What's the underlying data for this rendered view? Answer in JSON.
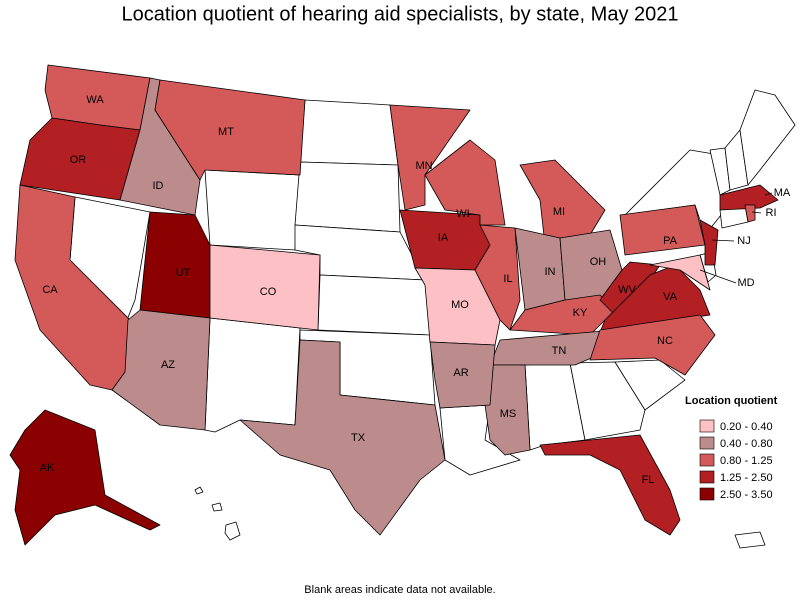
{
  "chart_data": {
    "type": "choropleth",
    "title": "Location quotient of hearing aid specialists, by state, May 2021",
    "legend": {
      "title": "Location quotient",
      "classes": [
        {
          "label": "0.20 - 0.40",
          "color": "#fcc0c5"
        },
        {
          "label": "0.40 - 0.80",
          "color": "#bc8c8c"
        },
        {
          "label": "0.80 - 1.25",
          "color": "#d45a5a"
        },
        {
          "label": "1.25 - 2.50",
          "color": "#b22024"
        },
        {
          "label": "2.50 - 3.50",
          "color": "#8b0000"
        }
      ]
    },
    "states": [
      {
        "label": "WA",
        "class": 2
      },
      {
        "label": "OR",
        "class": 3
      },
      {
        "label": "CA",
        "class": 2
      },
      {
        "label": "ID",
        "class": 1
      },
      {
        "label": "MT",
        "class": 2
      },
      {
        "label": "UT",
        "class": 4
      },
      {
        "label": "CO",
        "class": 0
      },
      {
        "label": "AZ",
        "class": 1
      },
      {
        "label": "TX",
        "class": 1
      },
      {
        "label": "AK",
        "class": 4
      },
      {
        "label": "MN",
        "class": 2
      },
      {
        "label": "IA",
        "class": 3
      },
      {
        "label": "MO",
        "class": 0
      },
      {
        "label": "WI",
        "class": 2
      },
      {
        "label": "IL",
        "class": 2
      },
      {
        "label": "MI",
        "class": 2
      },
      {
        "label": "IN",
        "class": 1
      },
      {
        "label": "OH",
        "class": 1
      },
      {
        "label": "KY",
        "class": 2
      },
      {
        "label": "TN",
        "class": 1
      },
      {
        "label": "MS",
        "class": 1
      },
      {
        "label": "AR",
        "class": 1
      },
      {
        "label": "WV",
        "class": 3
      },
      {
        "label": "VA",
        "class": 3
      },
      {
        "label": "NC",
        "class": 2
      },
      {
        "label": "PA",
        "class": 2
      },
      {
        "label": "NJ",
        "class": 3
      },
      {
        "label": "MD",
        "class": 0
      },
      {
        "label": "MA",
        "class": 3
      },
      {
        "label": "RI",
        "class": 2
      },
      {
        "label": "FL",
        "class": 3
      }
    ],
    "footnote": "Blank areas indicate data not available."
  }
}
